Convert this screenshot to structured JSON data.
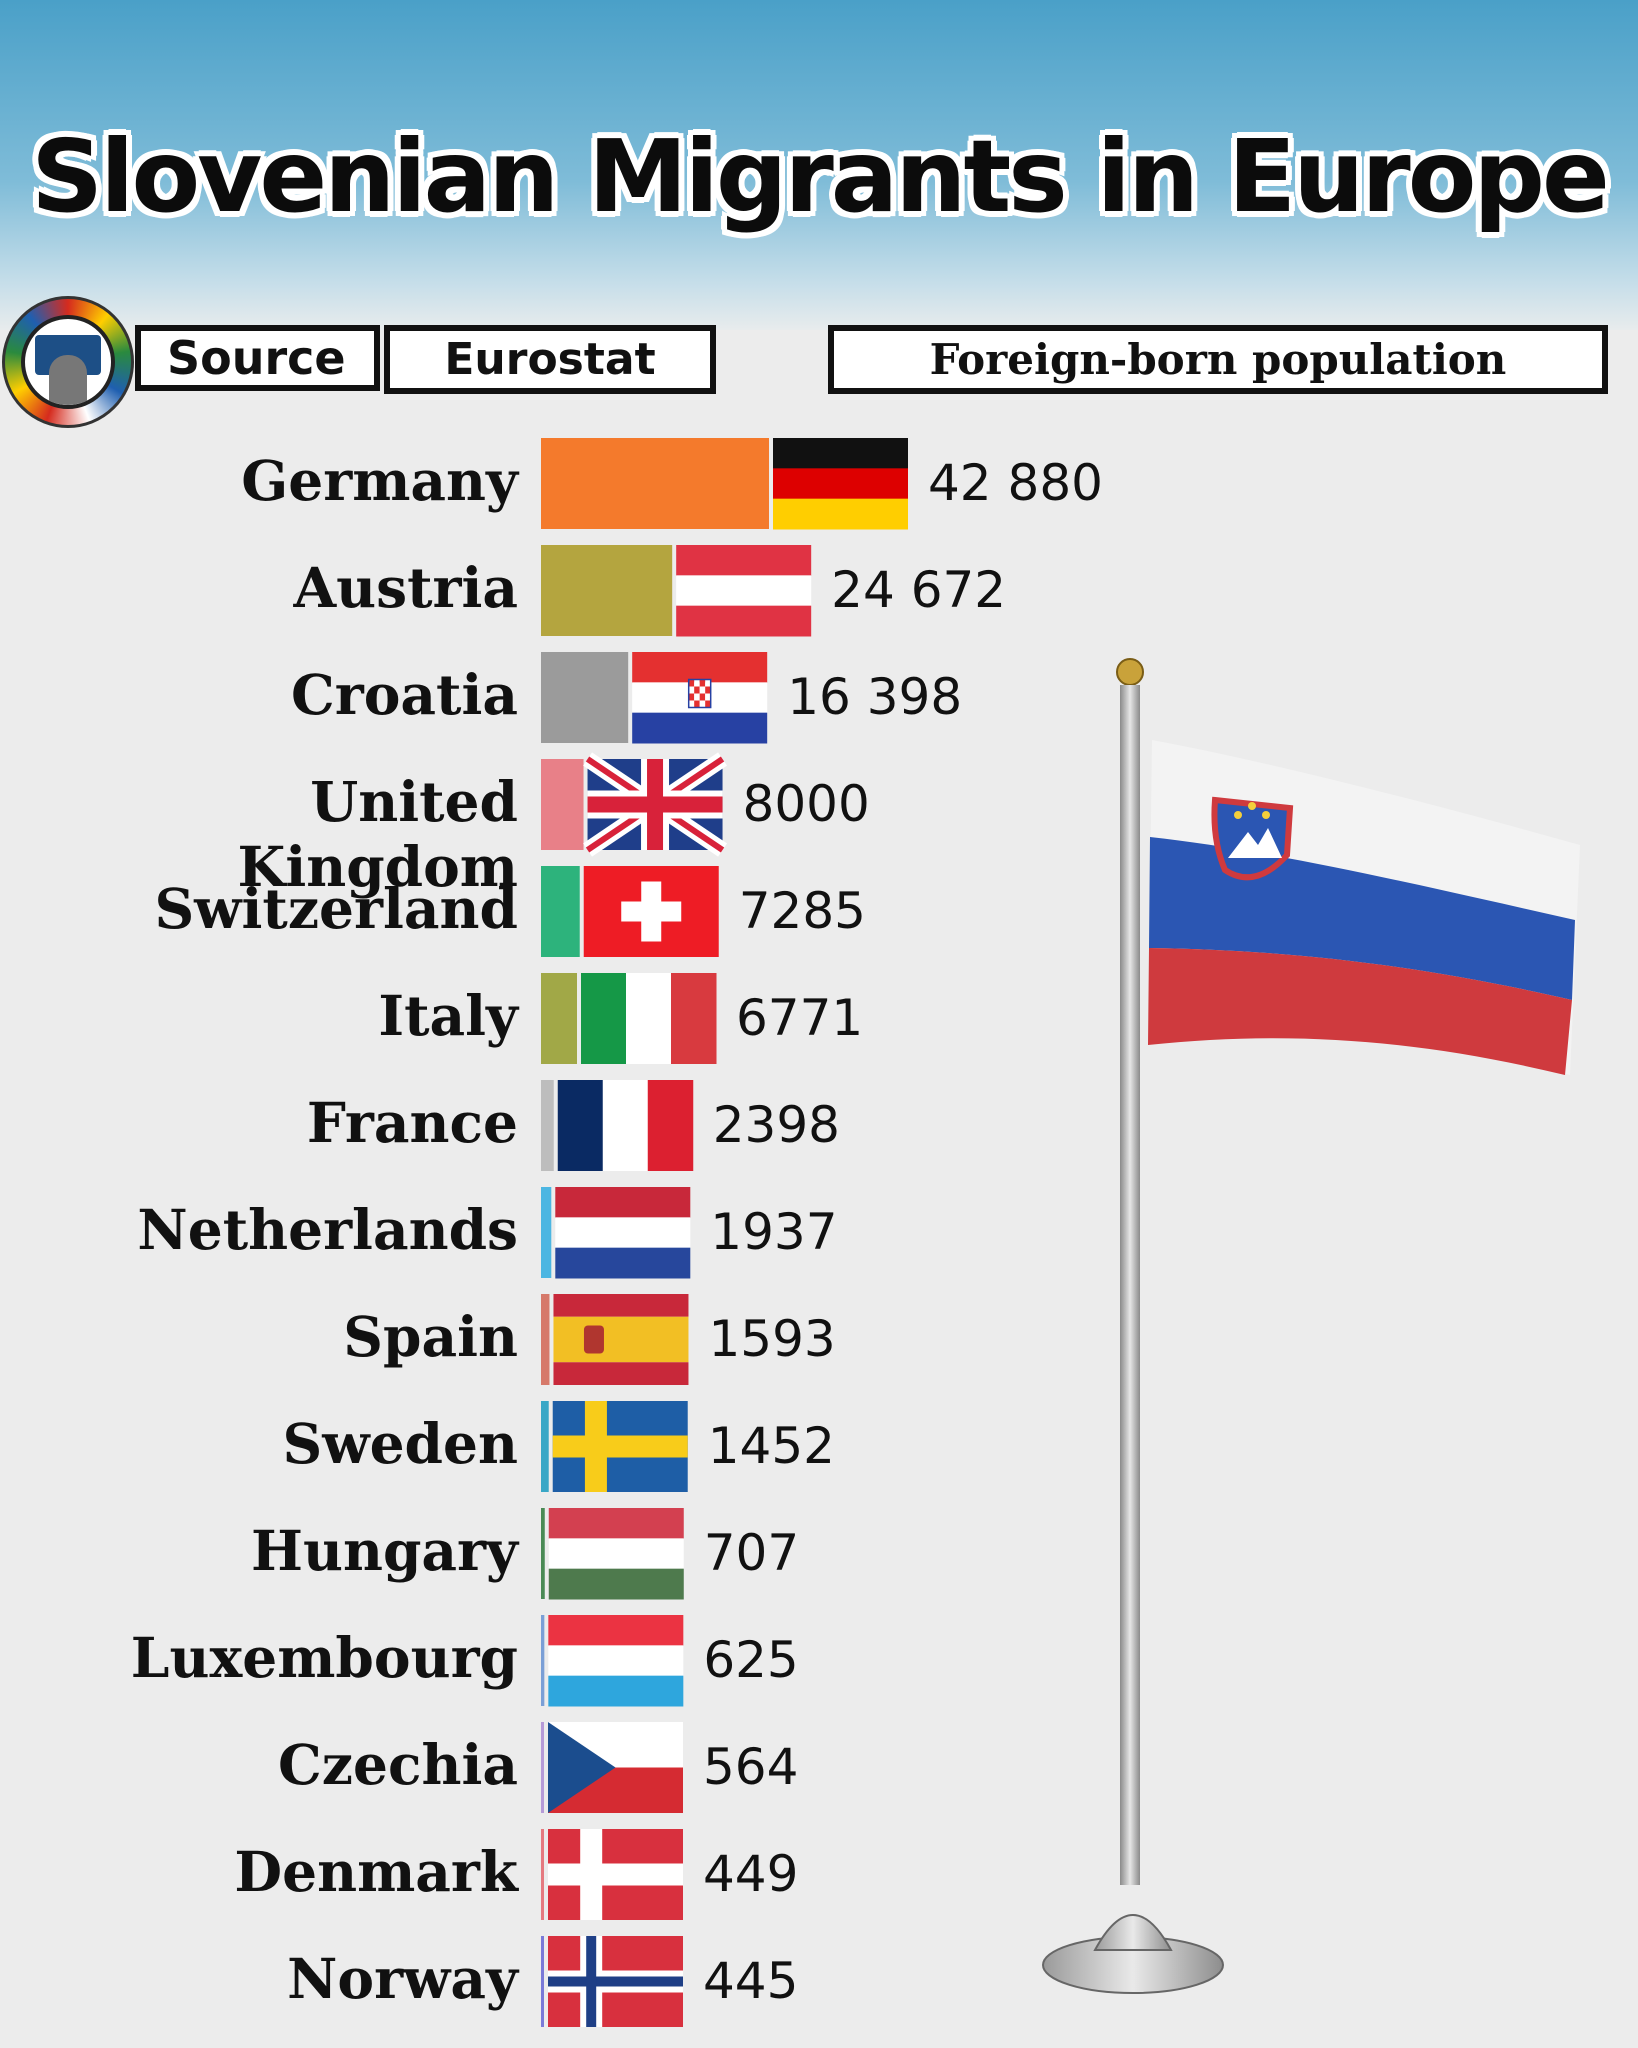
{
  "title": "Slovenian Migrants in Europe",
  "source_label": "Source",
  "source_value": "Eurostat",
  "metric_label": "Foreign-born population",
  "chart_data": {
    "type": "bar",
    "orientation": "horizontal",
    "categories": [
      "Germany",
      "Austria",
      "Croatia",
      "United Kingdom",
      "Switzerland",
      "Italy",
      "France",
      "Netherlands",
      "Spain",
      "Sweden",
      "Hungary",
      "Luxembourg",
      "Czechia",
      "Denmark",
      "Norway"
    ],
    "values": [
      42880,
      24672,
      16398,
      8000,
      7285,
      6771,
      2398,
      1937,
      1593,
      1452,
      707,
      625,
      564,
      449,
      445
    ],
    "value_labels": [
      "42 880",
      "24 672",
      "16 398",
      "8000",
      "7285",
      "6771",
      "2398",
      "1937",
      "1593",
      "1452",
      "707",
      "625",
      "564",
      "449",
      "445"
    ],
    "bar_colors": [
      "#f47a2c",
      "#b4a53f",
      "#9b9b9b",
      "#e88088",
      "#2db37c",
      "#a1a847",
      "#bdbdbd",
      "#4cb6e2",
      "#d6796a",
      "#39a7c6",
      "#4a8a55",
      "#7a9fd6",
      "#b69bd8",
      "#e57a80",
      "#7a7ad8"
    ],
    "flags": [
      "flag-germany",
      "flag-austria",
      "flag-croatia",
      "flag-united-kingdom",
      "flag-switzerland",
      "flag-italy",
      "flag-france",
      "flag-netherlands",
      "flag-spain",
      "flag-sweden",
      "flag-hungary",
      "flag-luxembourg",
      "flag-czechia",
      "flag-denmark",
      "flag-norway"
    ]
  }
}
